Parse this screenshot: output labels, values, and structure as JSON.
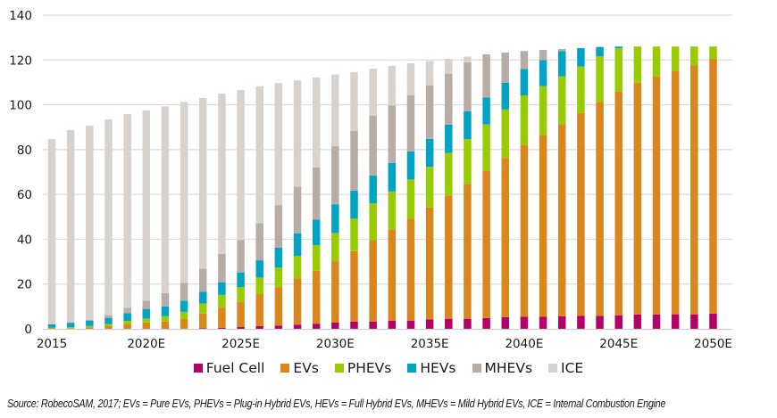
{
  "chart_data": {
    "type": "bar",
    "stacked": true,
    "title": "",
    "xlabel": "",
    "ylabel": "",
    "ylim": [
      0,
      140
    ],
    "yticks": [
      0,
      20,
      40,
      60,
      80,
      100,
      120,
      140
    ],
    "grid": true,
    "legend_position": "bottom",
    "categories": [
      "2015",
      "2016",
      "2017",
      "2018",
      "2019",
      "2020E",
      "2021",
      "2022",
      "2023",
      "2024",
      "2025E",
      "2026",
      "2027",
      "2028",
      "2029",
      "2030E",
      "2031",
      "2032",
      "2033",
      "2034",
      "2035E",
      "2036",
      "2037",
      "2038",
      "2039",
      "2040E",
      "2041",
      "2042",
      "2043",
      "2044",
      "2045E",
      "2046",
      "2047",
      "2048",
      "2049",
      "2050E"
    ],
    "xtick_labels": [
      "2015",
      "",
      "",
      "",
      "",
      "2020E",
      "",
      "",
      "",
      "",
      "2025E",
      "",
      "",
      "",
      "",
      "2030E",
      "",
      "",
      "",
      "",
      "2035E",
      "",
      "",
      "",
      "",
      "2040E",
      "",
      "",
      "",
      "",
      "2045E",
      "",
      "",
      "",
      "",
      "2050E"
    ],
    "series": [
      {
        "name": "Fuel Cell",
        "color": "#b5006a",
        "values": [
          0,
          0,
          0,
          0,
          0,
          0,
          0,
          0.1,
          0.2,
          0.5,
          0.9,
          1.2,
          1.5,
          1.9,
          2.3,
          2.8,
          3.2,
          3.2,
          3.6,
          3.7,
          4.2,
          4.5,
          4.5,
          4.8,
          5.2,
          5.4,
          5.5,
          5.6,
          5.8,
          5.8,
          6.1,
          6.4,
          6.4,
          6.5,
          6.5,
          6.8
        ]
      },
      {
        "name": "EVs",
        "color": "#d9861c",
        "values": [
          0.2,
          0.3,
          0.7,
          1.2,
          2.2,
          2.9,
          3.3,
          4.3,
          6.6,
          9.0,
          11.3,
          14.3,
          17.1,
          20.7,
          23.6,
          27.4,
          31.5,
          36.5,
          40.8,
          45.5,
          50.0,
          55.0,
          60.2,
          65.6,
          71.1,
          76.5,
          81.1,
          85.8,
          90.5,
          95.5,
          99.7,
          103.5,
          106.2,
          108.6,
          111.2,
          113.7
        ]
      },
      {
        "name": "PHEVs",
        "color": "#99cc00",
        "values": [
          0.4,
          0.5,
          0.6,
          1.0,
          1.4,
          1.7,
          2.4,
          3.2,
          4.5,
          5.7,
          6.4,
          7.4,
          8.7,
          9.9,
          11.5,
          12.6,
          14.5,
          16.3,
          16.9,
          17.5,
          18.1,
          19.0,
          20.0,
          20.8,
          21.6,
          22.3,
          21.7,
          21.3,
          20.8,
          20.3,
          19.5,
          16.1,
          13.4,
          10.9,
          8.3,
          5.5
        ]
      },
      {
        "name": "HEVs",
        "color": "#00a3c4",
        "values": [
          1.4,
          1.9,
          2.3,
          2.7,
          3.4,
          4.3,
          4.3,
          4.9,
          5.3,
          5.6,
          6.6,
          7.7,
          8.9,
          10.2,
          11.4,
          12.8,
          12.5,
          12.4,
          12.7,
          12.5,
          12.5,
          12.6,
          12.4,
          12.1,
          11.9,
          11.8,
          11.7,
          11.3,
          8.2,
          4.2,
          0.7,
          0,
          0,
          0,
          0,
          0
        ]
      },
      {
        "name": "MHEVs",
        "color": "#b8aca7",
        "values": [
          0,
          0.3,
          0.5,
          1.2,
          2.4,
          3.7,
          6.0,
          8.1,
          10.3,
          12.7,
          14.5,
          16.5,
          19.0,
          20.8,
          23.2,
          25.9,
          26.6,
          26.8,
          25.7,
          25.1,
          23.9,
          22.8,
          21.9,
          19.2,
          13.5,
          8.0,
          4.5,
          0.9,
          0,
          0,
          0,
          0,
          0,
          0,
          0,
          0
        ]
      },
      {
        "name": "ICE",
        "color": "#d7d2ce",
        "values": [
          82.7,
          85.7,
          86.6,
          87.4,
          86.5,
          84.9,
          83.3,
          80.7,
          76.1,
          71.5,
          66.9,
          61.2,
          54.5,
          47.4,
          40.2,
          32.0,
          26.3,
          20.9,
          17.6,
          14.2,
          10.8,
          6.6,
          2.5,
          0,
          0,
          0,
          0,
          0,
          0,
          0,
          0,
          0,
          0,
          0,
          0,
          0
        ]
      }
    ]
  },
  "legend": {
    "items": [
      {
        "label": "Fuel Cell",
        "color": "#b5006a"
      },
      {
        "label": "EVs",
        "color": "#d9861c"
      },
      {
        "label": "PHEVs",
        "color": "#99cc00"
      },
      {
        "label": "HEVs",
        "color": "#00a3c4"
      },
      {
        "label": "MHEVs",
        "color": "#b8aca7"
      },
      {
        "label": "ICE",
        "color": "#d7d2ce"
      }
    ]
  },
  "source_note": "Source: RobecoSAM, 2017; EVs = Pure EVs, PHEVs = Plug-in Hybrid EVs, HEVs = Full Hybrid EVs, MHEVs = Mild Hybrid EVs, ICE = Internal Combustion Engine"
}
